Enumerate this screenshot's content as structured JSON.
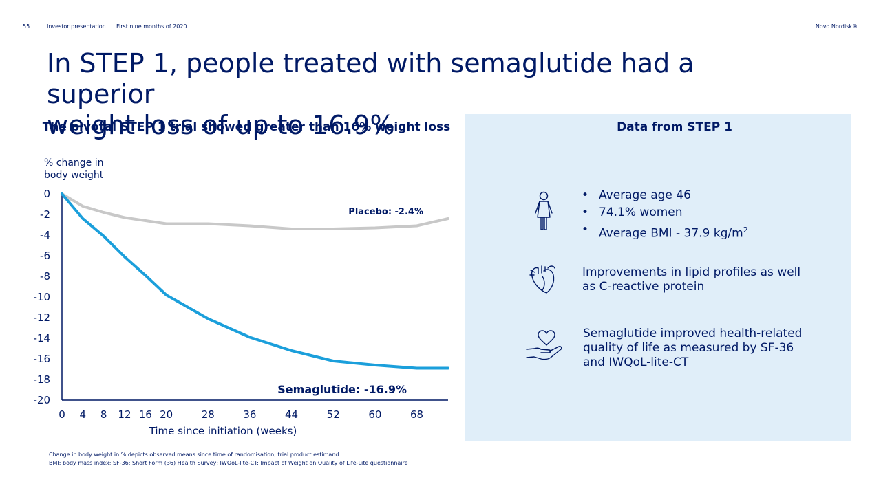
{
  "header": {
    "page_number": "55",
    "section": "Investor presentation",
    "period": "First nine months of 2020",
    "brand": "Novo Nordisk®"
  },
  "title": {
    "line1": "In STEP 1, people treated with semaglutide had a superior",
    "line2": "weight loss of up to 16.9%"
  },
  "left": {
    "heading": "The pivotal STEP 1 trial showed greater than 16% weight loss"
  },
  "panel": {
    "heading": "Data from STEP 1",
    "demographics": [
      "Average age 46",
      "74.1% women",
      "Average BMI - 37.9 kg/m"
    ],
    "bmi_superscript": "2",
    "lipids": "Improvements in lipid profiles as well as C-reactive protein",
    "quality_of_life": "Semaglutide improved health-related quality of life as measured by SF-36 and IWQoL-lite-CT",
    "icons": [
      "person-icon",
      "heart-organ-icon",
      "heart-in-hand-icon"
    ]
  },
  "chart_data": {
    "type": "line",
    "ylabel_line1": "% change in",
    "ylabel_line2": "body weight",
    "xlabel": "Time since initiation (weeks)",
    "x_ticks": [
      0,
      4,
      8,
      12,
      16,
      20,
      28,
      36,
      44,
      52,
      60,
      68
    ],
    "y_ticks": [
      0,
      -2,
      -4,
      -6,
      -8,
      -10,
      -12,
      -14,
      -16,
      -18,
      -20
    ],
    "xlim": [
      0,
      74
    ],
    "ylim": [
      -20,
      0
    ],
    "series": [
      {
        "name": "Placebo",
        "label": "Placebo: -2.4%",
        "color": "#c8c8c8",
        "x": [
          0,
          4,
          8,
          12,
          16,
          20,
          28,
          36,
          44,
          52,
          60,
          68,
          74
        ],
        "y": [
          0,
          -1.2,
          -1.8,
          -2.3,
          -2.6,
          -2.9,
          -2.9,
          -3.1,
          -3.4,
          -3.4,
          -3.3,
          -3.1,
          -2.4
        ]
      },
      {
        "name": "Semaglutide",
        "label": "Semaglutide: -16.9%",
        "color": "#1b9fdb",
        "x": [
          0,
          4,
          8,
          12,
          16,
          20,
          28,
          36,
          44,
          52,
          60,
          68,
          74
        ],
        "y": [
          0,
          -2.4,
          -4.1,
          -6.1,
          -7.9,
          -9.8,
          -12.1,
          -13.9,
          -15.2,
          -16.2,
          -16.6,
          -16.9,
          -16.9
        ]
      }
    ]
  },
  "footnote": {
    "line1": "Change in body weight in % depicts observed means since time of randomisation; trial product estimand.",
    "line2": "BMI: body mass index; SF-36: Short Form (36) Health Survey; IWQoL-lite-CT: Impact of Weight on Quality of Life-Lite questionnaire"
  }
}
